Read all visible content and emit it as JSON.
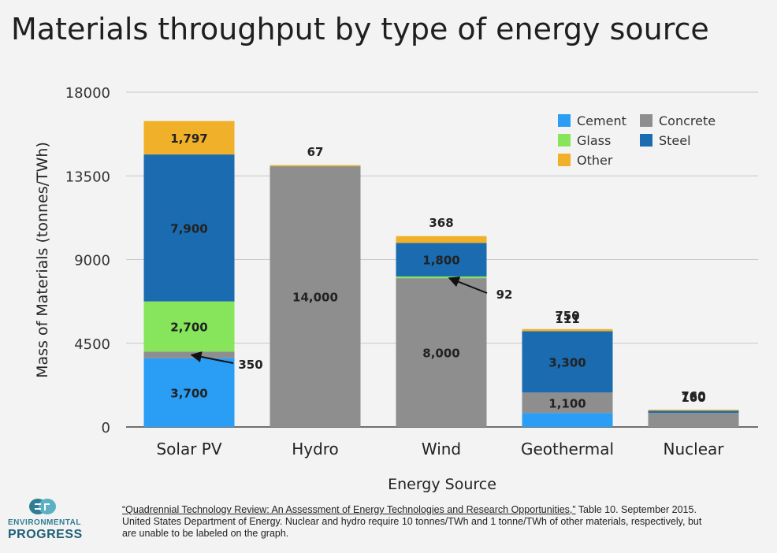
{
  "chart_data": {
    "type": "bar",
    "stacked": true,
    "title": "Materials throughput by type of energy source",
    "xlabel": "Energy Source",
    "ylabel": "Mass of Materials (tonnes/TWh)",
    "ylim": [
      0,
      18000
    ],
    "yticks": [
      "0",
      "4500",
      "9000",
      "13500",
      "18000"
    ],
    "categories": [
      "Solar PV",
      "Hydro",
      "Wind",
      "Geothermal",
      "Nuclear"
    ],
    "series": [
      {
        "name": "Cement",
        "color": "#2a9df4",
        "values": [
          3700,
          0,
          0,
          750,
          0
        ]
      },
      {
        "name": "Concrete",
        "color": "#8e8e8e",
        "values": [
          350,
          14000,
          8000,
          1100,
          760
        ]
      },
      {
        "name": "Glass",
        "color": "#86e55b",
        "values": [
          2700,
          0,
          92,
          0,
          0
        ]
      },
      {
        "name": "Steel",
        "color": "#1a6bb0",
        "values": [
          7900,
          67,
          1800,
          3300,
          160
        ]
      },
      {
        "name": "Other",
        "color": "#f0b02a",
        "values": [
          1797,
          1,
          368,
          111,
          10
        ]
      }
    ],
    "data_labels": [
      [
        "3,700",
        "350",
        "2,700",
        "7,900",
        "1,797"
      ],
      [
        "",
        "14,000",
        "",
        "67",
        ""
      ],
      [
        "",
        "8,000",
        "92",
        "1,800",
        "368"
      ],
      [
        "750",
        "1,100",
        "",
        "3,300",
        "111"
      ],
      [
        "",
        "760",
        "",
        "160",
        ""
      ]
    ],
    "legend_position": "top-right",
    "grid": true
  },
  "footnote": {
    "source": "“Quadrennial Technology Review: An Assessment of Energy Technologies and Research Opportunities,”",
    "line1_rest": " Table 10. September 2015.",
    "line2": "United States Department of Energy. Nuclear and hydro require 10 tonnes/TWh and 1 tonne/TWh of other materials, respectively, but",
    "line3": "are unable to be labeled on the graph."
  },
  "logo": {
    "line1": "ENVIRONMENTAL",
    "line2": "PROGRESS",
    "mark": "EP",
    "colors": {
      "primary": "#2e7d92",
      "secondary": "#1f5f78"
    }
  }
}
